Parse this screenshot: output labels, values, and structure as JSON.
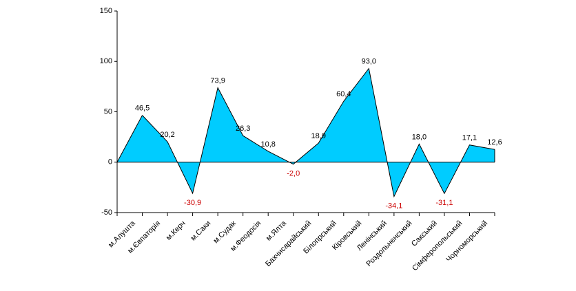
{
  "chart_data": {
    "type": "area",
    "categories": [
      "м.Алушта",
      "м.Євпаторія",
      "м.Керч",
      "м.Саки",
      "м.Судак",
      "м.Феодосія",
      "м.Ялта",
      "Бахчисарайський",
      "Білопрський",
      "Кіровський",
      "Ленінський",
      "Роздольненський",
      "Сакський",
      "Сімферопольський",
      "Чорноморський"
    ],
    "values": [
      46.5,
      20.2,
      -30.9,
      73.9,
      26.3,
      10.8,
      -2.0,
      18.9,
      60.4,
      93.0,
      -34.1,
      18.0,
      -31.1,
      17.1,
      12.6
    ],
    "value_labels": [
      "46,5",
      "20,2",
      "-30,9",
      "73,9",
      "26,3",
      "10,8",
      "-2,0",
      "18,9",
      "60,4",
      "93,0",
      "-34,1",
      "18,0",
      "-31,1",
      "17,1",
      "12,6"
    ],
    "color": "#00ccff",
    "negative_label_color": "#cc0000",
    "ylim": [
      -50,
      150
    ],
    "yticks": [
      -50,
      0,
      50,
      100,
      150
    ]
  }
}
